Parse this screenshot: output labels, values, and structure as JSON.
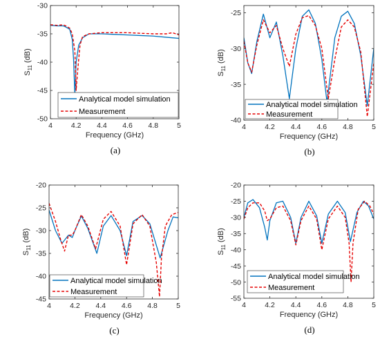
{
  "colors": {
    "simulation": "#0072BD",
    "measurement": "#E60000",
    "axis": "#262626"
  },
  "chart_data": [
    {
      "type": "line",
      "panel": "(a)",
      "xlabel": "Frequency (GHz)",
      "ylabel_main": "S",
      "ylabel_sub": "11",
      "ylabel_unit": " (dB)",
      "xlim": [
        4,
        5
      ],
      "ylim": [
        -50,
        -30
      ],
      "xticks": [
        4,
        4.2,
        4.4,
        4.6,
        4.8,
        5
      ],
      "xtick_labels": [
        "4",
        "4.2",
        "4.4",
        "4.6",
        "4.8",
        "5"
      ],
      "yticks": [
        -50,
        -45,
        -40,
        -35,
        -30
      ],
      "ytick_labels": [
        "-50",
        "-45",
        "-40",
        "-35",
        "-30"
      ],
      "legend_position": "bottom-right",
      "series": [
        {
          "name": "Analytical model simulation",
          "style": "solid",
          "color": "#0072BD",
          "x": [
            4,
            4.05,
            4.1,
            4.12,
            4.15,
            4.17,
            4.18,
            4.19,
            4.2,
            4.22,
            4.25,
            4.3,
            4.4,
            4.5,
            4.6,
            4.7,
            4.8,
            4.9,
            5
          ],
          "y": [
            -33.5,
            -33.6,
            -33.6,
            -33.8,
            -34.2,
            -36.0,
            -39.5,
            -45.8,
            -40.0,
            -37.0,
            -35.7,
            -35.0,
            -35.0,
            -35.1,
            -35.2,
            -35.3,
            -35.4,
            -35.6,
            -35.8
          ]
        },
        {
          "name": "Measurement",
          "style": "dashed",
          "color": "#E60000",
          "x": [
            4,
            4.05,
            4.1,
            4.12,
            4.15,
            4.17,
            4.19,
            4.2,
            4.21,
            4.23,
            4.25,
            4.3,
            4.4,
            4.5,
            4.6,
            4.7,
            4.8,
            4.9,
            4.95,
            5
          ],
          "y": [
            -33.4,
            -33.5,
            -33.4,
            -33.6,
            -34.0,
            -35.0,
            -38.0,
            -45.0,
            -42.0,
            -37.0,
            -35.5,
            -35.0,
            -34.8,
            -34.8,
            -34.8,
            -34.9,
            -35.0,
            -35.0,
            -34.8,
            -35.2
          ]
        }
      ]
    },
    {
      "type": "line",
      "panel": "(b)",
      "xlabel": "Frequency (GHz)",
      "ylabel_main": "S",
      "ylabel_sub": "11",
      "ylabel_unit": " (dB)",
      "xlim": [
        4,
        5
      ],
      "ylim": [
        -40,
        -24
      ],
      "xticks": [
        4,
        4.2,
        4.4,
        4.6,
        4.8,
        5
      ],
      "xtick_labels": [
        "4",
        "4.2",
        "4.4",
        "4.6",
        "4.8",
        "5"
      ],
      "yticks": [
        -40,
        -35,
        -30,
        -25
      ],
      "ytick_labels": [
        "-40",
        "-35",
        "-30",
        "-25"
      ],
      "legend_position": "bottom-right",
      "series": [
        {
          "name": "Analytical model simulation",
          "style": "solid",
          "color": "#0072BD",
          "x": [
            4,
            4.03,
            4.06,
            4.1,
            4.15,
            4.2,
            4.25,
            4.3,
            4.35,
            4.4,
            4.45,
            4.5,
            4.55,
            4.6,
            4.64,
            4.7,
            4.75,
            4.8,
            4.85,
            4.9,
            4.95,
            5
          ],
          "y": [
            -28.5,
            -32.0,
            -33.5,
            -29.0,
            -25.2,
            -28.5,
            -26.3,
            -31.0,
            -37.0,
            -30.0,
            -25.5,
            -24.6,
            -26.5,
            -31.5,
            -37.5,
            -28.5,
            -25.5,
            -24.8,
            -26.5,
            -31.0,
            -38.0,
            -30.0
          ]
        },
        {
          "name": "Measurement",
          "style": "dashed",
          "color": "#E60000",
          "x": [
            4,
            4.03,
            4.06,
            4.1,
            4.15,
            4.2,
            4.25,
            4.3,
            4.35,
            4.4,
            4.45,
            4.5,
            4.55,
            4.6,
            4.65,
            4.7,
            4.75,
            4.8,
            4.85,
            4.9,
            4.95,
            5
          ],
          "y": [
            -29.0,
            -32.0,
            -33.3,
            -29.5,
            -26.0,
            -27.8,
            -26.8,
            -30.0,
            -32.5,
            -28.0,
            -25.7,
            -25.4,
            -26.8,
            -30.0,
            -37.0,
            -31.5,
            -27.0,
            -26.0,
            -27.0,
            -30.5,
            -39.5,
            -32.0
          ]
        }
      ]
    },
    {
      "type": "line",
      "panel": "(c)",
      "xlabel": "Frequency (GHz)",
      "ylabel_main": "S",
      "ylabel_sub": "11",
      "ylabel_unit": " (dB)",
      "xlim": [
        4,
        5
      ],
      "ylim": [
        -45,
        -20
      ],
      "xticks": [
        4,
        4.2,
        4.4,
        4.6,
        4.8,
        5
      ],
      "xtick_labels": [
        "4",
        "4.2",
        "4.4",
        "4.6",
        "4.8",
        "5"
      ],
      "yticks": [
        -45,
        -40,
        -35,
        -30,
        -25,
        -20
      ],
      "ytick_labels": [
        "-45",
        "-40",
        "-35",
        "-30",
        "-25",
        "-20"
      ],
      "legend_position": "bottom-left",
      "series": [
        {
          "name": "Analytical model simulation",
          "style": "solid",
          "color": "#0072BD",
          "x": [
            4,
            4.05,
            4.1,
            4.15,
            4.18,
            4.2,
            4.25,
            4.3,
            4.37,
            4.42,
            4.48,
            4.55,
            4.6,
            4.65,
            4.72,
            4.78,
            4.86,
            4.92,
            4.96,
            5
          ],
          "y": [
            -25.5,
            -30.0,
            -32.8,
            -31.0,
            -31.5,
            -30.0,
            -26.8,
            -29.5,
            -35.0,
            -29.0,
            -26.7,
            -30.0,
            -35.5,
            -28.0,
            -26.7,
            -28.5,
            -36.0,
            -30.0,
            -27.0,
            -27.2
          ]
        },
        {
          "name": "Measurement",
          "style": "dashed",
          "color": "#E60000",
          "x": [
            4,
            4.05,
            4.09,
            4.12,
            4.15,
            4.18,
            4.2,
            4.25,
            4.3,
            4.36,
            4.42,
            4.48,
            4.55,
            4.6,
            4.65,
            4.72,
            4.78,
            4.83,
            4.855,
            4.87,
            4.9,
            4.95,
            5
          ],
          "y": [
            -24.0,
            -28.0,
            -32.0,
            -34.5,
            -31.0,
            -31.0,
            -30.0,
            -26.5,
            -29.0,
            -34.0,
            -27.5,
            -25.8,
            -29.0,
            -37.5,
            -28.5,
            -26.5,
            -29.0,
            -37.0,
            -44.5,
            -36.0,
            -29.0,
            -26.5,
            -26.0
          ]
        }
      ]
    },
    {
      "type": "line",
      "panel": "(d)",
      "xlabel": "Frequency (GHz)",
      "ylabel_main": "S",
      "ylabel_sub": "11",
      "ylabel_unit": " (dB)",
      "xlim": [
        4,
        5
      ],
      "ylim": [
        -55,
        -20
      ],
      "xticks": [
        4,
        4.2,
        4.4,
        4.6,
        4.8,
        5
      ],
      "xtick_labels": [
        "4",
        "4.2",
        "4.4",
        "4.6",
        "4.8",
        "5"
      ],
      "yticks": [
        -55,
        -50,
        -45,
        -40,
        -35,
        -30,
        -25,
        -20
      ],
      "ytick_labels": [
        "-55",
        "-50",
        "-45",
        "-40",
        "-35",
        "-30",
        "-25",
        "-20"
      ],
      "legend_position": "bottom-left",
      "series": [
        {
          "name": "Analytical model simulation",
          "style": "solid",
          "color": "#0072BD",
          "x": [
            4,
            4.03,
            4.07,
            4.12,
            4.16,
            4.18,
            4.2,
            4.25,
            4.3,
            4.36,
            4.4,
            4.44,
            4.5,
            4.56,
            4.6,
            4.65,
            4.72,
            4.78,
            4.82,
            4.87,
            4.92,
            4.96,
            5
          ],
          "y": [
            -30.0,
            -25.5,
            -24.5,
            -27.0,
            -33.0,
            -37.0,
            -31.0,
            -25.5,
            -25.0,
            -30.0,
            -38.0,
            -30.0,
            -25.0,
            -29.5,
            -38.0,
            -29.0,
            -25.0,
            -28.5,
            -37.5,
            -28.5,
            -25.0,
            -26.5,
            -30.5
          ]
        },
        {
          "name": "Measurement",
          "style": "dashed",
          "color": "#E60000",
          "x": [
            4,
            4.03,
            4.07,
            4.12,
            4.16,
            4.18,
            4.2,
            4.25,
            4.3,
            4.36,
            4.4,
            4.44,
            4.5,
            4.56,
            4.6,
            4.65,
            4.72,
            4.78,
            4.81,
            4.825,
            4.84,
            4.88,
            4.93,
            4.97,
            5
          ],
          "y": [
            -30.5,
            -27.0,
            -25.5,
            -25.5,
            -28.0,
            -31.0,
            -30.5,
            -27.0,
            -26.5,
            -31.0,
            -38.5,
            -31.0,
            -26.5,
            -30.5,
            -40.0,
            -30.5,
            -26.5,
            -30.0,
            -38.0,
            -50.0,
            -38.0,
            -27.5,
            -25.0,
            -26.5,
            -29.0
          ]
        }
      ]
    }
  ]
}
